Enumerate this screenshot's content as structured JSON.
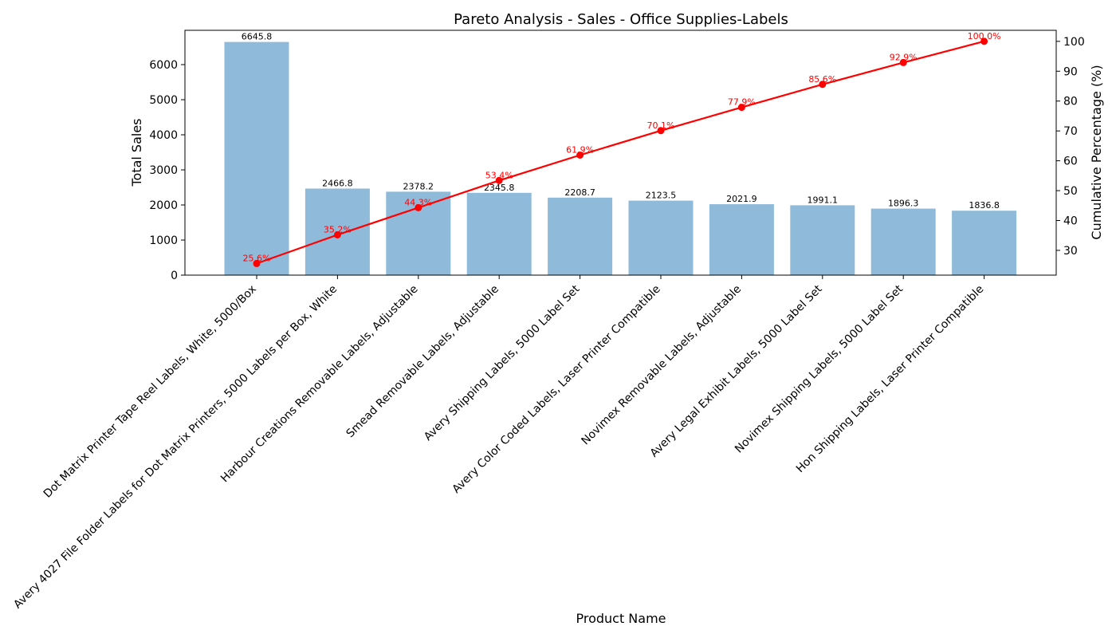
{
  "chart_data": {
    "type": "bar",
    "title": "Pareto Analysis - Sales - Office Supplies-Labels",
    "xlabel": "Product Name",
    "ylabel": "Total Sales",
    "y2label": "Cumulative Percentage (%)",
    "categories": [
      "Dot Matrix Printer Tape Reel Labels, White, 5000/Box",
      "Avery 4027 File Folder Labels for Dot Matrix Printers, 5000 Labels per Box, White",
      "Harbour Creations Removable Labels, Adjustable",
      "Smead Removable Labels, Adjustable",
      "Avery Shipping Labels, 5000 Label Set",
      "Avery Color Coded Labels, Laser Printer Compatible",
      "Novimex Removable Labels, Adjustable",
      "Avery Legal Exhibit Labels, 5000 Label Set",
      "Novimex Shipping Labels, 5000 Label Set",
      "Hon Shipping Labels, Laser Printer Compatible"
    ],
    "series": [
      {
        "type": "bar",
        "values": [
          6645.8,
          2466.8,
          2378.2,
          2345.8,
          2208.7,
          2123.5,
          2021.9,
          1991.1,
          1896.3,
          1836.8
        ],
        "labels": [
          "6645.8",
          "2466.8",
          "2378.2",
          "2345.8",
          "2208.7",
          "2123.5",
          "2021.9",
          "1991.1",
          "1896.3",
          "1836.8"
        ],
        "color": "#8fbad9"
      },
      {
        "type": "line",
        "axis": "right",
        "values": [
          25.6,
          35.2,
          44.3,
          53.4,
          61.9,
          70.1,
          77.9,
          85.6,
          92.9,
          100.0
        ],
        "labels": [
          "25.6%",
          "35.2%",
          "44.3%",
          "53.4%",
          "61.9%",
          "70.1%",
          "77.9%",
          "85.6%",
          "92.9%",
          "100.0%"
        ],
        "color": "#ff0000"
      }
    ],
    "ylim": [
      0,
      6978
    ],
    "y_ticks": [
      0,
      1000,
      2000,
      3000,
      4000,
      5000,
      6000
    ],
    "y2lim": [
      21.7,
      103.7
    ],
    "y2_ticks": [
      30,
      40,
      50,
      60,
      70,
      80,
      90,
      100
    ],
    "grid": false
  }
}
